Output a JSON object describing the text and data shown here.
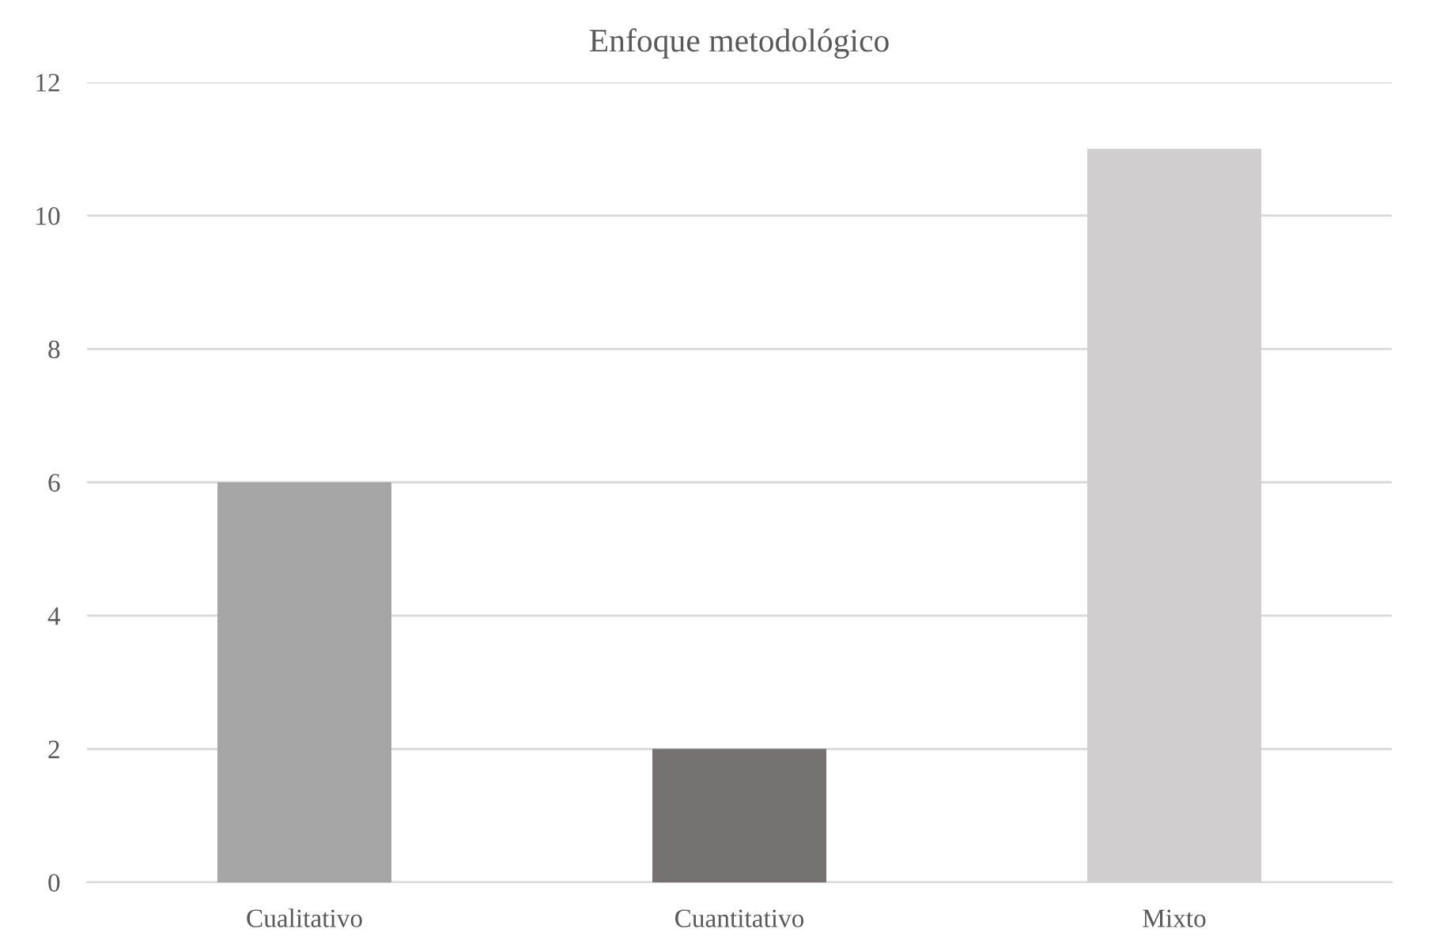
{
  "chart_data": {
    "type": "bar",
    "title": "Enfoque metodológico",
    "categories": [
      "Cualitativo",
      "Cuantitativo",
      "Mixto"
    ],
    "values": [
      6,
      2,
      11
    ],
    "colors": [
      "#a5a5a5",
      "#767171",
      "#d0cece"
    ],
    "ylim": [
      0,
      12
    ],
    "yticks": [
      0,
      2,
      4,
      6,
      8,
      10,
      12
    ],
    "grid": "y",
    "legend": false
  }
}
